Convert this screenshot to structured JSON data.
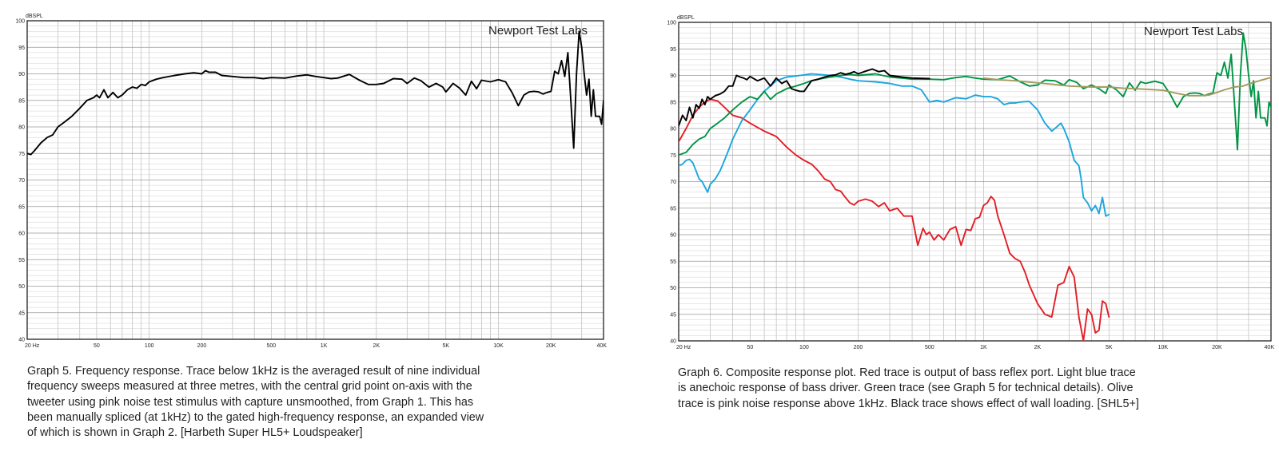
{
  "chart_data": [
    {
      "type": "line",
      "title": "",
      "watermark": "Newport Test Labs",
      "ylabel": "dBSPL",
      "xlabel": "",
      "x_scale": "log",
      "xlim": [
        20,
        40000
      ],
      "ylim": [
        40,
        100
      ],
      "grid": true,
      "legend": "none",
      "x_tick_labels": [
        {
          "v": 20,
          "t": "20  Hz"
        },
        {
          "v": 50,
          "t": "50"
        },
        {
          "v": 100,
          "t": "100"
        },
        {
          "v": 200,
          "t": "200"
        },
        {
          "v": 500,
          "t": "500"
        },
        {
          "v": 1000,
          "t": "1K"
        },
        {
          "v": 2000,
          "t": "2K"
        },
        {
          "v": 5000,
          "t": "5K"
        },
        {
          "v": 10000,
          "t": "10K"
        },
        {
          "v": 20000,
          "t": "20K"
        },
        {
          "v": 40000,
          "t": "40K"
        }
      ],
      "y_tick_labels": [
        {
          "v": 40,
          "t": "40"
        },
        {
          "v": 45,
          "t": "45"
        },
        {
          "v": 50,
          "t": "50"
        },
        {
          "v": 55,
          "t": "55"
        },
        {
          "v": 60,
          "t": "60"
        },
        {
          "v": 65,
          "t": "65"
        },
        {
          "v": 70,
          "t": "70"
        },
        {
          "v": 75,
          "t": "75"
        },
        {
          "v": 80,
          "t": "80"
        },
        {
          "v": 85,
          "t": "85"
        },
        {
          "v": 90,
          "t": "90"
        },
        {
          "v": 95,
          "t": "95"
        },
        {
          "v": 100,
          "t": "100"
        }
      ],
      "series": [
        {
          "color": "#000000",
          "x": [
            20,
            21,
            22,
            24,
            26,
            28,
            30,
            33,
            36,
            40,
            44,
            48,
            50,
            52,
            55,
            58,
            62,
            66,
            70,
            75,
            80,
            85,
            90,
            95,
            100,
            110,
            120,
            140,
            160,
            180,
            200,
            210,
            220,
            240,
            260,
            300,
            350,
            400,
            450,
            500,
            600,
            700,
            800,
            900,
            1000,
            1100,
            1200,
            1400,
            1600,
            1800,
            2000,
            2200,
            2500,
            2800,
            3000,
            3300,
            3600,
            4000,
            4400,
            4800,
            5000,
            5500,
            6000,
            6500,
            7000,
            7500,
            8000,
            9000,
            10000,
            11000,
            12000,
            13000,
            14000,
            15000,
            16000,
            17000,
            18000,
            19000,
            20000,
            21000,
            22000,
            23000,
            24000,
            25000,
            26000,
            27000,
            28000,
            29000,
            30000,
            31000,
            32000,
            33000,
            34000,
            35000,
            36000,
            37000,
            38000,
            39000,
            40000
          ],
          "y": [
            75,
            74.8,
            75.5,
            77,
            78,
            78.5,
            80,
            81,
            82,
            83.5,
            85,
            85.5,
            86,
            85.5,
            87,
            85.5,
            86.5,
            85.5,
            86,
            87,
            87.5,
            87.3,
            88,
            87.8,
            88.5,
            89,
            89.3,
            89.7,
            90,
            90.2,
            90,
            90.6,
            90.3,
            90.3,
            89.7,
            89.5,
            89.3,
            89.3,
            89.1,
            89.3,
            89.2,
            89.6,
            89.8,
            89.5,
            89.3,
            89.1,
            89.2,
            89.9,
            88.8,
            88,
            88,
            88.2,
            89.1,
            89,
            88.2,
            89.2,
            88.7,
            87.5,
            88.2,
            87.5,
            86.6,
            88.2,
            87.3,
            86,
            88.6,
            87.2,
            88.8,
            88.5,
            88.9,
            88.5,
            86.4,
            84,
            86,
            86.6,
            86.7,
            86.6,
            86.2,
            86.5,
            86.7,
            90.5,
            90,
            92.5,
            89.5,
            94,
            85,
            76,
            90,
            98,
            95,
            90,
            86,
            89,
            82,
            87,
            82,
            82,
            82,
            80.5,
            85
          ]
        }
      ]
    },
    {
      "type": "line",
      "title": "",
      "watermark": "Newport Test Labs",
      "ylabel": "dBSPL",
      "xlabel": "",
      "x_scale": "log",
      "xlim": [
        20,
        40000
      ],
      "ylim": [
        40,
        100
      ],
      "grid": true,
      "legend": "none",
      "x_tick_labels": [
        {
          "v": 20,
          "t": "20  Hz"
        },
        {
          "v": 50,
          "t": "50"
        },
        {
          "v": 100,
          "t": "100"
        },
        {
          "v": 200,
          "t": "200"
        },
        {
          "v": 500,
          "t": "500"
        },
        {
          "v": 1000,
          "t": "1K"
        },
        {
          "v": 2000,
          "t": "2K"
        },
        {
          "v": 5000,
          "t": "5K"
        },
        {
          "v": 10000,
          "t": "10K"
        },
        {
          "v": 20000,
          "t": "20K"
        },
        {
          "v": 40000,
          "t": "40K"
        }
      ],
      "y_tick_labels": [
        {
          "v": 40,
          "t": "40"
        },
        {
          "v": 45,
          "t": "45"
        },
        {
          "v": 50,
          "t": "50"
        },
        {
          "v": 55,
          "t": "55"
        },
        {
          "v": 60,
          "t": "60"
        },
        {
          "v": 65,
          "t": "65"
        },
        {
          "v": 70,
          "t": "70"
        },
        {
          "v": 75,
          "t": "75"
        },
        {
          "v": 80,
          "t": "80"
        },
        {
          "v": 85,
          "t": "85"
        },
        {
          "v": 90,
          "t": "90"
        },
        {
          "v": 95,
          "t": "95"
        },
        {
          "v": 100,
          "t": "100"
        }
      ],
      "series": [
        {
          "color": "#e21e26",
          "x": [
            20,
            22,
            24,
            26,
            28,
            30,
            33,
            36,
            40,
            45,
            50,
            60,
            70,
            80,
            90,
            100,
            110,
            120,
            130,
            140,
            150,
            160,
            170,
            180,
            190,
            200,
            220,
            240,
            260,
            280,
            300,
            330,
            360,
            400,
            430,
            460,
            480,
            500,
            530,
            560,
            600,
            650,
            700,
            750,
            800,
            850,
            900,
            950,
            1000,
            1050,
            1100,
            1150,
            1200,
            1300,
            1400,
            1500,
            1600,
            1700,
            1800,
            2000,
            2200,
            2400,
            2600,
            2800,
            3000,
            3200,
            3400,
            3600,
            3800,
            4000,
            4200,
            4400,
            4600,
            4800,
            5000
          ],
          "y": [
            77.5,
            80,
            82.5,
            84,
            85,
            85.5,
            85.2,
            84,
            82.5,
            82,
            81,
            79.5,
            78.5,
            76.5,
            75,
            74,
            73.3,
            72,
            70.5,
            70,
            68.5,
            68.2,
            67,
            66,
            65.6,
            66.3,
            66.7,
            66.3,
            65.3,
            66,
            64.5,
            65,
            63.5,
            63.5,
            58,
            61.2,
            60,
            60.5,
            59,
            60,
            59,
            61,
            61.5,
            58,
            61,
            60.8,
            63,
            63.3,
            65.5,
            66,
            67.2,
            66.5,
            63.5,
            60,
            56.5,
            55.5,
            55,
            53,
            50.5,
            47,
            45,
            44.5,
            50.5,
            51,
            54,
            52,
            44.5,
            40,
            46,
            45,
            41.5,
            42,
            47.5,
            47,
            44.5
          ]
        },
        {
          "color": "#1aa6df",
          "x": [
            20,
            21,
            22,
            23,
            24,
            25,
            26,
            27,
            28,
            29,
            30,
            32,
            34,
            36,
            38,
            40,
            45,
            50,
            55,
            60,
            70,
            80,
            90,
            100,
            110,
            120,
            140,
            160,
            180,
            200,
            250,
            300,
            350,
            400,
            450,
            500,
            550,
            600,
            700,
            800,
            900,
            1000,
            1100,
            1200,
            1300,
            1400,
            1500,
            1600,
            1800,
            2000,
            2200,
            2400,
            2500,
            2700,
            2800,
            3000,
            3200,
            3400,
            3500,
            3600,
            3800,
            4000,
            4200,
            4400,
            4600,
            4800,
            5000
          ],
          "y": [
            73,
            73.3,
            74,
            74.2,
            73.5,
            72,
            70.5,
            70,
            69,
            68,
            69.5,
            70.5,
            72,
            74,
            76,
            78,
            81.5,
            83.5,
            85.5,
            87,
            89,
            89.7,
            89.9,
            90.1,
            90.3,
            90.2,
            90,
            89.7,
            89.3,
            89,
            88.8,
            88.5,
            88,
            88,
            87.3,
            85,
            85.3,
            85,
            85.8,
            85.6,
            86.3,
            86,
            86,
            85.6,
            84.5,
            84.8,
            84.8,
            85,
            85.1,
            83.5,
            81,
            79.5,
            80,
            81,
            80,
            77.5,
            74,
            73,
            70.5,
            67,
            66,
            64.5,
            65.5,
            64,
            67,
            63.5,
            63.8
          ]
        },
        {
          "color": "#009444",
          "x": [
            20,
            22,
            24,
            26,
            28,
            30,
            33,
            36,
            40,
            45,
            50,
            55,
            60,
            65,
            70,
            75,
            80,
            90,
            100,
            110,
            120,
            140,
            160,
            180,
            200,
            250,
            300,
            350,
            400,
            500,
            600,
            700,
            800,
            900,
            1000,
            1200,
            1400,
            1600,
            1800,
            2000,
            2200,
            2500,
            2800,
            3000,
            3300,
            3600,
            4000,
            4400,
            4800,
            5000,
            5500,
            6000,
            6500,
            7000,
            7500,
            8000,
            9000,
            10000,
            11000,
            12000,
            13000,
            14000,
            15000,
            16000,
            17000,
            18000,
            19000,
            20000,
            21000,
            22000,
            23000,
            24000,
            25000,
            26000,
            27000,
            28000,
            29000,
            30000,
            31000,
            32000,
            33000,
            34000,
            35000,
            36000,
            37000,
            38000,
            39000,
            40000
          ],
          "y": [
            75,
            75.5,
            77,
            78,
            78.5,
            80,
            81,
            82,
            83.5,
            85,
            86,
            85.5,
            87,
            85.5,
            86.5,
            87,
            87.5,
            88,
            88.5,
            89,
            89.3,
            89.7,
            90,
            90.2,
            90,
            90.3,
            89.7,
            89.5,
            89.3,
            89.3,
            89.2,
            89.6,
            89.8,
            89.5,
            89.3,
            89.2,
            89.9,
            88.8,
            88,
            88.2,
            89.1,
            89,
            88.2,
            89.2,
            88.7,
            87.5,
            88.2,
            87.5,
            86.6,
            88.2,
            87.3,
            86,
            88.6,
            87.2,
            88.8,
            88.5,
            88.9,
            88.5,
            86.4,
            84,
            86,
            86.6,
            86.7,
            86.6,
            86.2,
            86.5,
            86.7,
            90.5,
            90,
            92.5,
            89.5,
            94,
            85,
            76,
            90,
            98,
            95,
            90,
            86,
            89,
            82,
            87,
            82,
            82,
            82,
            80.5,
            85,
            84
          ]
        },
        {
          "color": "#a49a5e",
          "x": [
            1000,
            1200,
            1500,
            2000,
            2500,
            3000,
            4000,
            5000,
            6000,
            7000,
            8000,
            10000,
            12000,
            14000,
            16000,
            18000,
            20000,
            22000,
            25000,
            28000,
            30000,
            33000,
            36000,
            40000
          ],
          "y": [
            89.5,
            89.2,
            89,
            88.6,
            88.3,
            88,
            87.8,
            87.8,
            87.6,
            87.5,
            87.4,
            87.2,
            86.6,
            86.2,
            86.2,
            86.3,
            86.8,
            87.3,
            87.8,
            88,
            88.4,
            88.8,
            89.2,
            89.6
          ]
        },
        {
          "color": "#000000",
          "x": [
            20,
            21,
            22,
            23,
            24,
            25,
            26,
            27,
            28,
            29,
            30,
            32,
            34,
            36,
            38,
            40,
            42,
            44,
            46,
            48,
            50,
            55,
            60,
            65,
            70,
            75,
            80,
            85,
            90,
            95,
            100,
            110,
            120,
            130,
            140,
            150,
            160,
            170,
            180,
            190,
            200,
            220,
            240,
            260,
            280,
            300,
            350,
            400,
            500
          ],
          "y": [
            80.5,
            82.5,
            81.5,
            84,
            82,
            84.5,
            83.8,
            85.5,
            84.5,
            86,
            85.5,
            86.2,
            86.5,
            87,
            88,
            88,
            90,
            89.7,
            89.5,
            89.2,
            89.8,
            89,
            89.5,
            88,
            89.5,
            88.5,
            89,
            87.5,
            87.2,
            87,
            87,
            89,
            89.3,
            89.7,
            90,
            90.1,
            90.5,
            90.2,
            90.4,
            90.7,
            90.3,
            90.8,
            91.2,
            90.7,
            90.9,
            90,
            89.7,
            89.5,
            89.4
          ]
        }
      ]
    }
  ],
  "captions": {
    "graph5": [
      "Graph 5. Frequency response. Trace below 1kHz is the averaged result of nine individual",
      "frequency sweeps measured at three metres, with the central grid point on-axis with the",
      "tweeter using pink noise test stimulus with capture unsmoothed, from Graph 1. This has",
      "been manually spliced (at 1kHz) to the gated high-frequency response, an expanded view",
      "of which is shown in Graph 2. [Harbeth Super HL5+ Loudspeaker]"
    ],
    "graph6": [
      "Graph 6. Composite response plot. Red trace is output of bass reflex port. Light blue trace",
      "is anechoic response of bass driver.  Green trace (see Graph 5 for technical details). Olive",
      "trace is pink noise response above 1kHz. Black trace shows effect of wall loading. [SHL5+]"
    ]
  }
}
